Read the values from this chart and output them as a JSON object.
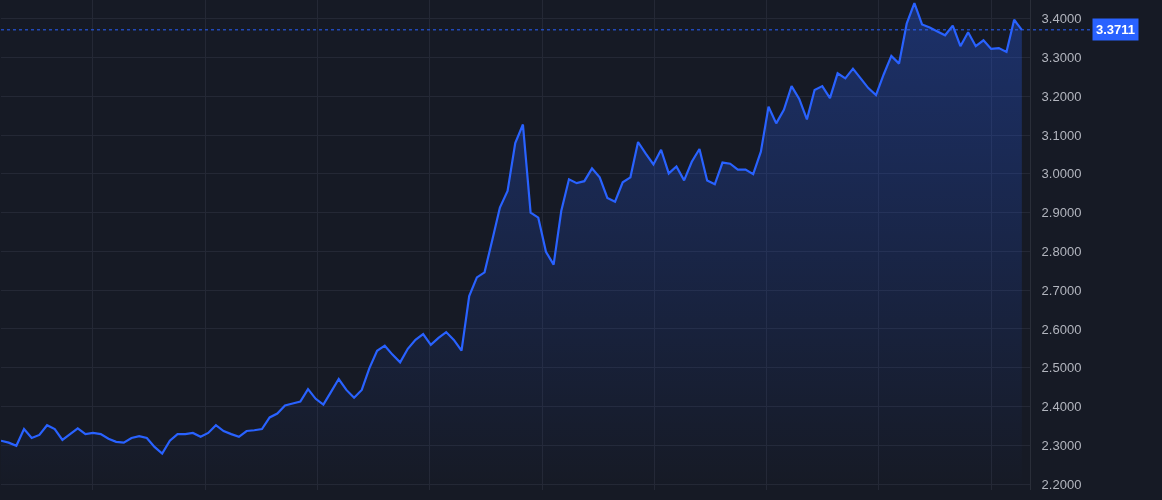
{
  "chart_data": {
    "type": "area",
    "categories": [
      null,
      null,
      null,
      null,
      null,
      null,
      null,
      null,
      null,
      null,
      null,
      null,
      null,
      null,
      null,
      null,
      null,
      null,
      null,
      null,
      null,
      null,
      null,
      null,
      null,
      null,
      null,
      null,
      null,
      null,
      null,
      null,
      null,
      null,
      null,
      null,
      null,
      null,
      null,
      null,
      null,
      null,
      null,
      null,
      null,
      null,
      null,
      null,
      null,
      null,
      null,
      null,
      null,
      null,
      null,
      null,
      null,
      null,
      null,
      null,
      null,
      null,
      null,
      null,
      null,
      null,
      null,
      null,
      null,
      null,
      null,
      null,
      null,
      null,
      null,
      null,
      null,
      null,
      null,
      null,
      null,
      null,
      null,
      null,
      null,
      null,
      null,
      null,
      null,
      null,
      null,
      null,
      null,
      null,
      null,
      null,
      null,
      null,
      null,
      null,
      null,
      null,
      null,
      null,
      null,
      null,
      null,
      null,
      null,
      null,
      null,
      null,
      null,
      null,
      null,
      null,
      null,
      null,
      null,
      null,
      null,
      null,
      null,
      null,
      null,
      null,
      null,
      null,
      null,
      null,
      null,
      null,
      null,
      null
    ],
    "values": [
      2.312,
      2.307,
      2.299,
      2.342,
      2.319,
      2.327,
      2.352,
      2.342,
      2.314,
      2.329,
      2.344,
      2.329,
      2.332,
      2.329,
      2.317,
      2.309,
      2.307,
      2.319,
      2.324,
      2.319,
      2.296,
      2.279,
      2.312,
      2.329,
      2.329,
      2.332,
      2.322,
      2.332,
      2.352,
      2.337,
      2.329,
      2.322,
      2.337,
      2.339,
      2.342,
      2.372,
      2.382,
      2.403,
      2.408,
      2.413,
      2.445,
      2.42,
      2.405,
      2.438,
      2.471,
      2.443,
      2.423,
      2.443,
      2.499,
      2.544,
      2.557,
      2.534,
      2.514,
      2.549,
      2.572,
      2.587,
      2.559,
      2.577,
      2.592,
      2.572,
      2.544,
      2.685,
      2.733,
      2.746,
      2.829,
      2.913,
      2.956,
      3.079,
      3.127,
      2.9,
      2.887,
      2.799,
      2.766,
      2.905,
      2.986,
      2.976,
      2.981,
      3.014,
      2.991,
      2.938,
      2.928,
      2.978,
      2.991,
      3.082,
      3.052,
      3.024,
      3.062,
      3.001,
      3.019,
      2.983,
      3.031,
      3.064,
      2.983,
      2.973,
      3.029,
      3.026,
      3.011,
      3.011,
      2.999,
      3.057,
      3.173,
      3.13,
      3.165,
      3.226,
      3.193,
      3.14,
      3.216,
      3.226,
      3.195,
      3.259,
      3.246,
      3.271,
      3.246,
      3.221,
      3.203,
      3.256,
      3.304,
      3.284,
      3.387,
      3.44,
      3.385,
      3.377,
      3.367,
      3.357,
      3.382,
      3.329,
      3.365,
      3.329,
      3.344,
      3.322,
      3.324,
      3.314,
      3.397,
      3.371
    ],
    "color": "#2962ff",
    "ylim": [
      2.185,
      3.448
    ],
    "yticks": [
      {
        "value": 2.2,
        "label": "2.2000"
      },
      {
        "value": 2.3,
        "label": "2.3000"
      },
      {
        "value": 2.4,
        "label": "2.4000"
      },
      {
        "value": 2.5,
        "label": "2.5000"
      },
      {
        "value": 2.6,
        "label": "2.6000"
      },
      {
        "value": 2.7,
        "label": "2.7000"
      },
      {
        "value": 2.8,
        "label": "2.8000"
      },
      {
        "value": 2.9,
        "label": "2.9000"
      },
      {
        "value": 3.0,
        "label": "3.0000"
      },
      {
        "value": 3.1,
        "label": "3.1000"
      },
      {
        "value": 3.2,
        "label": "3.2000"
      },
      {
        "value": 3.3,
        "label": "3.3000"
      },
      {
        "value": 3.4,
        "label": "3.4000"
      }
    ],
    "ref_lines": [
      {
        "axis": "y",
        "value": 3.3711,
        "label": "3.3711",
        "color": "#2962ff",
        "line_style": "dotted"
      }
    ],
    "grid": true,
    "tick_labels": "y"
  }
}
